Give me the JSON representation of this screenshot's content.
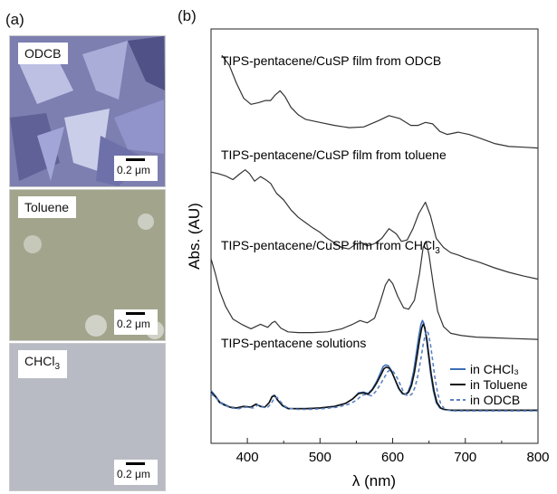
{
  "panel_a_label": "(a)",
  "panel_b_label": "(b)",
  "micrographs": [
    {
      "label": "ODCB",
      "scale_bar": "0.2 μm",
      "tone": "#7d7fb1"
    },
    {
      "label": "Toluene",
      "scale_bar": "0.2 μm",
      "tone": "#a2a48c"
    },
    {
      "label": "CHCl",
      "label_sub": "3",
      "scale_bar": "0.2 μm",
      "tone": "#b8bbc3"
    }
  ],
  "chart_data": {
    "type": "line",
    "xlabel": "λ (nm)",
    "ylabel": "Abs. (AU)",
    "xlim": [
      350,
      800
    ],
    "xticks": [
      400,
      500,
      600,
      700,
      800
    ],
    "yticks": [],
    "grid": false,
    "legend_position": "bottom-right",
    "annotations": [
      {
        "text": "TIPS-pentacene/CuSP film from ODCB"
      },
      {
        "text": "TIPS-pentacene/CuSP film from toluene"
      },
      {
        "text": "TIPS-pentacene/CuSP film from CHCl",
        "sub": "3"
      },
      {
        "text": "TIPS-pentacene solutions"
      }
    ],
    "series": [
      {
        "group": "film from ODCB",
        "color": "#333333",
        "dash": "",
        "x": [
          365,
          375,
          385,
          395,
          405,
          415,
          425,
          432,
          438,
          445,
          452,
          460,
          470,
          480,
          500,
          520,
          540,
          560,
          580,
          595,
          610,
          625,
          635,
          645,
          655,
          665,
          675,
          690,
          705,
          720,
          740,
          760,
          780,
          800
        ],
        "y": [
          4.55,
          4.42,
          4.18,
          3.98,
          3.9,
          3.92,
          3.95,
          3.95,
          4.02,
          4.08,
          4.0,
          3.86,
          3.76,
          3.7,
          3.66,
          3.62,
          3.59,
          3.6,
          3.68,
          3.75,
          3.71,
          3.62,
          3.62,
          3.66,
          3.64,
          3.54,
          3.5,
          3.53,
          3.5,
          3.45,
          3.38,
          3.34,
          3.33,
          3.32
        ]
      },
      {
        "group": "film from toluene",
        "color": "#333333",
        "dash": "",
        "x": [
          350,
          360,
          370,
          380,
          390,
          397,
          403,
          410,
          418,
          425,
          432,
          440,
          450,
          460,
          470,
          480,
          490,
          500,
          510,
          520,
          530,
          540,
          550,
          558,
          565,
          575,
          585,
          595,
          605,
          612,
          620,
          628,
          636,
          645,
          652,
          660,
          670,
          680,
          690,
          700,
          720,
          740,
          760,
          780,
          800
        ],
        "y": [
          3.0,
          2.98,
          2.95,
          2.9,
          2.98,
          3.03,
          2.98,
          2.88,
          2.94,
          2.9,
          2.85,
          2.72,
          2.63,
          2.5,
          2.4,
          2.33,
          2.26,
          2.2,
          2.12,
          2.06,
          2.0,
          1.98,
          2.05,
          2.06,
          2.02,
          2.05,
          2.12,
          2.25,
          2.18,
          2.08,
          2.1,
          2.25,
          2.45,
          2.6,
          2.42,
          2.12,
          2.0,
          1.93,
          1.9,
          1.86,
          1.8,
          1.73,
          1.67,
          1.62,
          1.58
        ]
      },
      {
        "group": "film from CHCl3",
        "color": "#333333",
        "dash": "",
        "x": [
          350,
          356,
          362,
          370,
          380,
          392,
          405,
          418,
          428,
          434,
          438,
          446,
          456,
          470,
          490,
          510,
          530,
          545,
          555,
          565,
          575,
          583,
          590,
          595,
          600,
          607,
          615,
          622,
          630,
          637,
          642,
          646,
          650,
          656,
          662,
          670,
          680,
          695,
          715,
          740,
          770,
          800
        ],
        "y": [
          1.85,
          1.65,
          1.42,
          1.22,
          1.05,
          0.98,
          0.92,
          0.98,
          0.94,
          1.0,
          1.02,
          0.93,
          0.88,
          0.87,
          0.87,
          0.88,
          0.92,
          0.98,
          1.03,
          1.0,
          1.06,
          1.28,
          1.5,
          1.58,
          1.52,
          1.35,
          1.2,
          1.18,
          1.3,
          1.65,
          2.0,
          2.08,
          1.9,
          1.5,
          1.15,
          0.95,
          0.86,
          0.83,
          0.81,
          0.8,
          0.79,
          0.78
        ]
      },
      {
        "group": "solution",
        "name": "in CHCl₃",
        "color": "#3c6fb6",
        "dash": "",
        "x": [
          350,
          356,
          362,
          368,
          376,
          385,
          395,
          405,
          412,
          418,
          424,
          430,
          434,
          437,
          441,
          448,
          456,
          466,
          480,
          500,
          520,
          535,
          545,
          553,
          560,
          566,
          572,
          578,
          583,
          587,
          590,
          594,
          598,
          603,
          608,
          613,
          617,
          621,
          625,
          629,
          633,
          636,
          639,
          641,
          643,
          646,
          649,
          652,
          656,
          660,
          665,
          670,
          680,
          700,
          730,
          760,
          800
        ],
        "y": [
          0.1,
          0.03,
          -0.05,
          -0.08,
          -0.12,
          -0.13,
          -0.11,
          -0.12,
          -0.08,
          -0.11,
          -0.12,
          -0.06,
          0.02,
          0.04,
          -0.02,
          -0.1,
          -0.14,
          -0.14,
          -0.14,
          -0.13,
          -0.11,
          -0.07,
          -0.01,
          0.07,
          0.08,
          0.06,
          0.12,
          0.22,
          0.33,
          0.42,
          0.44,
          0.43,
          0.37,
          0.25,
          0.13,
          0.06,
          0.05,
          0.08,
          0.18,
          0.36,
          0.62,
          0.82,
          0.98,
          1.03,
          0.99,
          0.82,
          0.58,
          0.34,
          0.1,
          -0.06,
          -0.13,
          -0.15,
          -0.16,
          -0.16,
          -0.16,
          -0.16,
          -0.16
        ]
      },
      {
        "group": "solution",
        "name": "in Toluene",
        "color": "#111111",
        "dash": "",
        "x": [
          350,
          356,
          362,
          368,
          376,
          385,
          395,
          405,
          412,
          418,
          424,
          430,
          434,
          438,
          442,
          449,
          457,
          467,
          480,
          500,
          520,
          535,
          545,
          553,
          560,
          566,
          572,
          578,
          584,
          588,
          591,
          595,
          599,
          604,
          609,
          614,
          618,
          622,
          626,
          630,
          634,
          637,
          640,
          642,
          644,
          647,
          650,
          653,
          657,
          661,
          666,
          671,
          681,
          700,
          730,
          760,
          800
        ],
        "y": [
          0.08,
          0.02,
          -0.06,
          -0.09,
          -0.12,
          -0.13,
          -0.11,
          -0.12,
          -0.08,
          -0.11,
          -0.12,
          -0.06,
          0.02,
          0.03,
          -0.03,
          -0.1,
          -0.14,
          -0.14,
          -0.14,
          -0.13,
          -0.11,
          -0.07,
          -0.01,
          0.06,
          0.07,
          0.05,
          0.11,
          0.2,
          0.31,
          0.39,
          0.41,
          0.4,
          0.34,
          0.23,
          0.12,
          0.06,
          0.05,
          0.08,
          0.17,
          0.34,
          0.58,
          0.77,
          0.93,
          0.98,
          0.94,
          0.78,
          0.55,
          0.32,
          0.09,
          -0.06,
          -0.13,
          -0.15,
          -0.16,
          -0.16,
          -0.16,
          -0.16,
          -0.16
        ]
      },
      {
        "group": "solution",
        "name": "in ODCB",
        "color": "#5a82c4",
        "dash": "4 3",
        "x": [
          350,
          357,
          364,
          370,
          378,
          388,
          398,
          408,
          415,
          421,
          427,
          433,
          437,
          441,
          445,
          452,
          460,
          470,
          484,
          504,
          524,
          540,
          550,
          558,
          565,
          571,
          577,
          583,
          589,
          593,
          596,
          600,
          604,
          609,
          614,
          619,
          623,
          627,
          631,
          635,
          639,
          642,
          645,
          647,
          649,
          652,
          655,
          658,
          662,
          666,
          671,
          676,
          686,
          705,
          735,
          765,
          800
        ],
        "y": [
          0.06,
          0.0,
          -0.07,
          -0.1,
          -0.13,
          -0.14,
          -0.12,
          -0.13,
          -0.09,
          -0.12,
          -0.13,
          -0.07,
          0.0,
          0.01,
          -0.04,
          -0.11,
          -0.14,
          -0.15,
          -0.15,
          -0.14,
          -0.12,
          -0.08,
          -0.03,
          0.04,
          0.05,
          0.03,
          0.09,
          0.18,
          0.28,
          0.35,
          0.37,
          0.36,
          0.31,
          0.21,
          0.1,
          0.04,
          0.03,
          0.06,
          0.15,
          0.31,
          0.53,
          0.71,
          0.85,
          0.9,
          0.86,
          0.71,
          0.5,
          0.28,
          0.06,
          -0.07,
          -0.14,
          -0.16,
          -0.17,
          -0.17,
          -0.17,
          -0.17,
          -0.17
        ]
      }
    ]
  }
}
